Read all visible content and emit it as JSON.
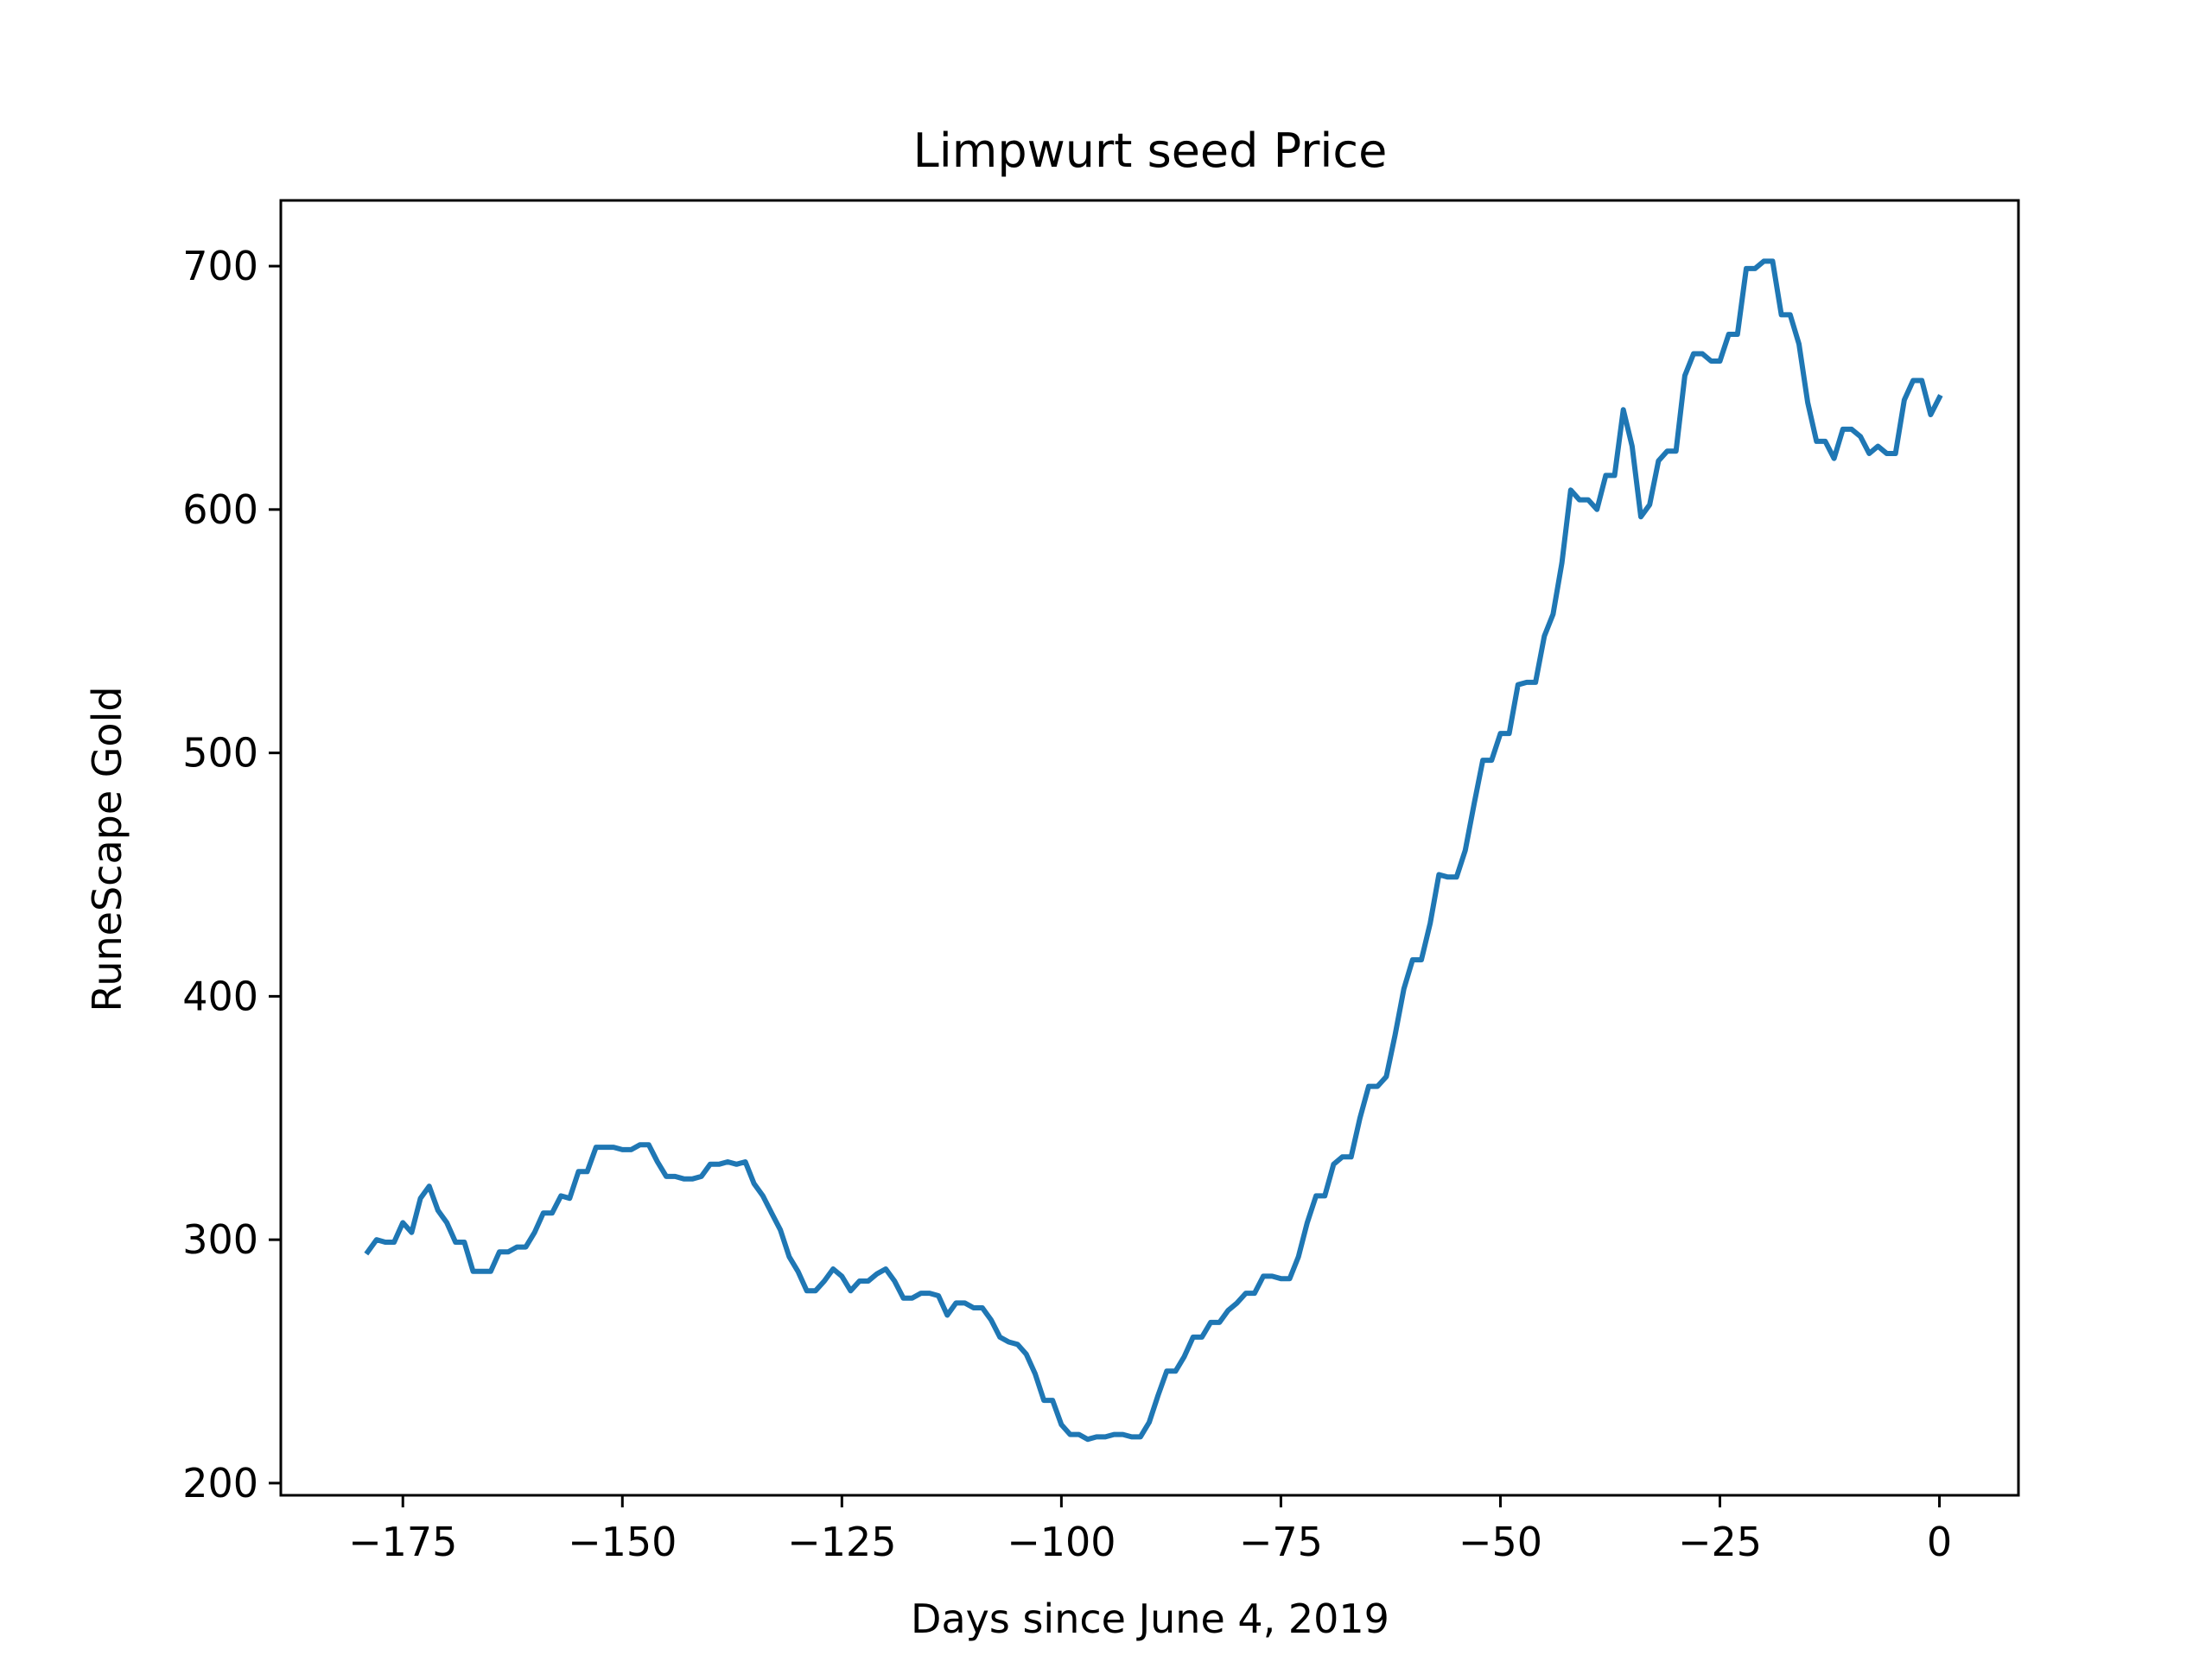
{
  "chart_data": {
    "type": "line",
    "title": "Limpwurt seed Price",
    "xlabel": "Days since June 4, 2019",
    "ylabel": "RuneScape Gold",
    "xlim": [
      -188.9,
      9
    ],
    "ylim": [
      195,
      727
    ],
    "x_ticks": [
      -175,
      -150,
      -125,
      -100,
      -75,
      -50,
      -25,
      0
    ],
    "x_tick_labels": [
      "−175",
      "−150",
      "−125",
      "−100",
      "−75",
      "−50",
      "−25",
      "0"
    ],
    "y_ticks": [
      200,
      300,
      400,
      500,
      600,
      700
    ],
    "y_tick_labels": [
      "200",
      "300",
      "400",
      "500",
      "600",
      "700"
    ],
    "grid": false,
    "line_color": "#1f77b4",
    "series": [
      {
        "x": [
          -179,
          -178,
          -177,
          -176,
          -175,
          -174,
          -173,
          -172,
          -171,
          -170,
          -169,
          -168,
          -167,
          -166,
          -165,
          -164,
          -163,
          -162,
          -161,
          -160,
          -159,
          -158,
          -157,
          -156,
          -155,
          -154,
          -153,
          -152,
          -151,
          -150,
          -149,
          -148,
          -147,
          -146,
          -145,
          -144,
          -143,
          -142,
          -141,
          -140,
          -139,
          -138,
          -137,
          -136,
          -135,
          -134,
          -133,
          -132,
          -131,
          -130,
          -129,
          -128,
          -127,
          -126,
          -125,
          -124,
          -123,
          -122,
          -121,
          -120,
          -119,
          -118,
          -117,
          -116,
          -115,
          -114,
          -113,
          -112,
          -111,
          -110,
          -109,
          -108,
          -107,
          -106,
          -105,
          -104,
          -103,
          -102,
          -101,
          -100,
          -99,
          -98,
          -97,
          -96,
          -95,
          -94,
          -93,
          -92,
          -91,
          -90,
          -89,
          -88,
          -87,
          -86,
          -85,
          -84,
          -83,
          -82,
          -81,
          -80,
          -79,
          -78,
          -77,
          -76,
          -75,
          -74,
          -73,
          -72,
          -71,
          -70,
          -69,
          -68,
          -67,
          -66,
          -65,
          -64,
          -63,
          -62,
          -61,
          -60,
          -59,
          -58,
          -57,
          -56,
          -55,
          -54,
          -53,
          -52,
          -51,
          -50,
          -49,
          -48,
          -47,
          -46,
          -45,
          -44,
          -43,
          -42,
          -41,
          -40,
          -39,
          -38,
          -37,
          -36,
          -35,
          -34,
          -33,
          -32,
          -31,
          -30,
          -29,
          -28,
          -27,
          -26,
          -25,
          -24,
          -23,
          -22,
          -21,
          -20,
          -19,
          -18,
          -17,
          -16,
          -15,
          -14,
          -13,
          -12,
          -11,
          -10,
          -9,
          -8,
          -7,
          -6,
          -5,
          -4,
          -3,
          -2,
          -1,
          0
        ],
        "y": [
          295,
          300,
          299,
          299,
          307,
          303,
          317,
          322,
          312,
          307,
          299,
          299,
          287,
          287,
          287,
          295,
          295,
          297,
          297,
          303,
          311,
          311,
          318,
          317,
          328,
          328,
          338,
          338,
          338,
          337,
          337,
          339,
          339,
          332,
          326,
          326,
          325,
          325,
          326,
          331,
          331,
          332,
          331,
          332,
          323,
          318,
          311,
          304,
          293,
          287,
          279,
          279,
          283,
          288,
          285,
          279,
          283,
          283,
          286,
          288,
          283,
          276,
          276,
          278,
          278,
          277,
          269,
          274,
          274,
          272,
          272,
          267,
          260,
          258,
          257,
          253,
          245,
          234,
          234,
          224,
          220,
          220,
          218,
          219,
          219,
          220,
          220,
          219,
          219,
          225,
          236,
          246,
          246,
          252,
          260,
          260,
          266,
          266,
          271,
          274,
          278,
          278,
          285,
          285,
          284,
          284,
          293,
          307,
          318,
          318,
          331,
          334,
          334,
          350,
          363,
          363,
          367,
          384,
          403,
          415,
          415,
          430,
          450,
          449,
          449,
          460,
          479,
          497,
          497,
          508,
          508,
          528,
          529,
          529,
          548,
          557,
          578,
          608,
          604,
          604,
          600,
          614,
          614,
          641,
          626,
          597,
          602,
          620,
          624,
          624,
          655,
          664,
          664,
          661,
          661,
          672,
          672,
          699,
          699,
          702,
          702,
          680,
          680,
          668,
          644,
          628,
          628,
          621,
          633,
          633,
          630,
          623,
          626,
          623,
          623,
          645,
          653,
          653,
          639,
          646
        ]
      }
    ]
  }
}
